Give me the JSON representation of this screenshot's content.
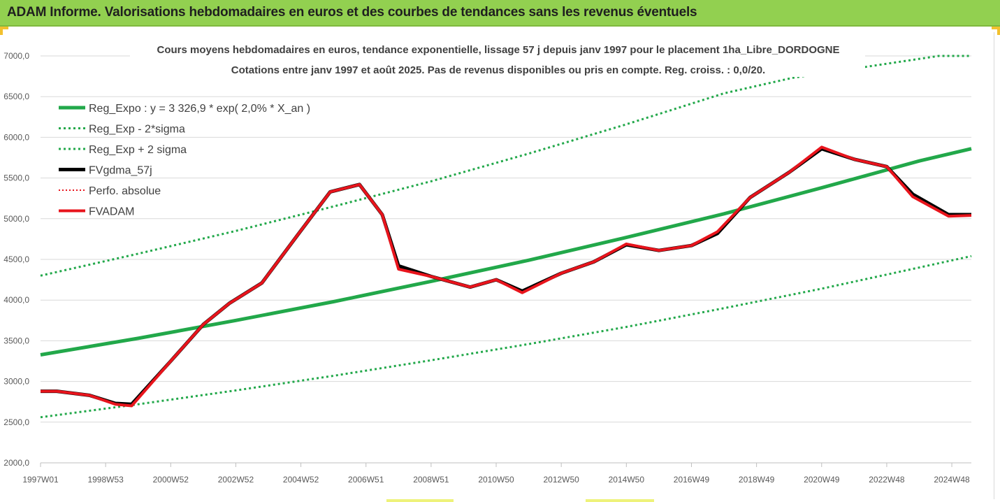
{
  "banner": {
    "title": "ADAM Informe. Valorisations hebdomadaires en euros et des courbes de tendances sans les revenus éventuels"
  },
  "chart_data": {
    "type": "line",
    "title": "Cours moyens hebdomadaires en euros, tendance exponentielle, lissage 57 j depuis janv 1997 pour le placement 1ha_Libre_DORDOGNE",
    "subtitle": "Cotations entre janv 1997 et août 2025.  Pas de revenus disponibles ou pris en compte. Reg. croiss. : 0,0/20.",
    "xlabel": "",
    "ylabel": "",
    "ylim": [
      2000,
      7000
    ],
    "xlim": [
      1997.0,
      2025.6
    ],
    "grid": true,
    "legend_position": "top-left",
    "x_ticks": [
      {
        "label": "1997W01",
        "x": 1997.0
      },
      {
        "label": "1998W53",
        "x": 1999.0
      },
      {
        "label": "2000W52",
        "x": 2001.0
      },
      {
        "label": "2002W52",
        "x": 2003.0
      },
      {
        "label": "2004W52",
        "x": 2005.0
      },
      {
        "label": "2006W51",
        "x": 2007.0
      },
      {
        "label": "2008W51",
        "x": 2009.0
      },
      {
        "label": "2010W50",
        "x": 2011.0
      },
      {
        "label": "2012W50",
        "x": 2013.0
      },
      {
        "label": "2014W50",
        "x": 2015.0
      },
      {
        "label": "2016W49",
        "x": 2017.0
      },
      {
        "label": "2018W49",
        "x": 2019.0
      },
      {
        "label": "2020W49",
        "x": 2021.0
      },
      {
        "label": "2022W48",
        "x": 2023.0
      },
      {
        "label": "2024W48",
        "x": 2025.0
      }
    ],
    "y_ticks": [
      {
        "label": "2000,0",
        "value": 2000
      },
      {
        "label": "2500,0",
        "value": 2500
      },
      {
        "label": "3000,0",
        "value": 3000
      },
      {
        "label": "3500,0",
        "value": 3500
      },
      {
        "label": "4000,0",
        "value": 4000
      },
      {
        "label": "4500,0",
        "value": 4500
      },
      {
        "label": "5000,0",
        "value": 5000
      },
      {
        "label": "5500,0",
        "value": 5500
      },
      {
        "label": "6000,0",
        "value": 6000
      },
      {
        "label": "6500,0",
        "value": 6500
      },
      {
        "label": "7000,0",
        "value": 7000
      }
    ],
    "series": [
      {
        "name": "Reg_Expo : y = 3 326,9 * exp( 2,0% *  X_an )",
        "color": "#22a84a",
        "style": "solid",
        "width": 5,
        "x": [
          1997.0,
          2000.0,
          2003.0,
          2006.0,
          2009.0,
          2012.0,
          2015.0,
          2018.0,
          2021.0,
          2024.0,
          2025.6
        ],
        "values": [
          3326.9,
          3530,
          3750,
          3980,
          4230,
          4490,
          4770,
          5060,
          5380,
          5710,
          5860
        ]
      },
      {
        "name": "Reg_Exp - 2*sigma",
        "color": "#22a84a",
        "style": "dotted",
        "width": 3,
        "x": [
          1997.0,
          2000.0,
          2003.0,
          2006.0,
          2009.0,
          2012.0,
          2015.0,
          2018.0,
          2021.0,
          2024.0,
          2025.6
        ],
        "values": [
          2560,
          2720,
          2890,
          3070,
          3260,
          3460,
          3670,
          3900,
          4140,
          4400,
          4540
        ]
      },
      {
        "name": "Reg_Exp + 2 sigma",
        "color": "#22a84a",
        "style": "dotted",
        "width": 3,
        "x": [
          1997.0,
          2000.0,
          2003.0,
          2006.0,
          2009.0,
          2012.0,
          2015.0,
          2018.0,
          2020.1,
          2024.6,
          2025.6
        ],
        "values": [
          4300,
          4570,
          4850,
          5150,
          5460,
          5800,
          6160,
          6540,
          6730,
          7000,
          7000
        ]
      },
      {
        "name": "FVgdma_57j",
        "color": "#000000",
        "style": "solid",
        "width": 5,
        "x": [
          1997.0,
          1997.5,
          1998.5,
          1999.3,
          1999.8,
          2001.0,
          2002.0,
          2002.8,
          2003.8,
          2004.9,
          2005.9,
          2006.8,
          2007.5,
          2008.0,
          2009.0,
          2010.2,
          2011.0,
          2011.8,
          2013.0,
          2014.0,
          2015.0,
          2016.0,
          2017.0,
          2017.8,
          2018.8,
          2020.0,
          2021.0,
          2022.0,
          2023.0,
          2023.8,
          2024.9,
          2025.6
        ],
        "values": [
          2880,
          2880,
          2830,
          2730,
          2720,
          3250,
          3700,
          3960,
          4210,
          4800,
          5330,
          5420,
          5050,
          4420,
          4290,
          4160,
          4250,
          4110,
          4330,
          4470,
          4680,
          4610,
          4670,
          4820,
          5260,
          5570,
          5860,
          5730,
          5640,
          5300,
          5050,
          5050
        ]
      },
      {
        "name": "Perfo. absolue",
        "color": "#e8141c",
        "style": "dotted",
        "width": 2,
        "x": [],
        "values": []
      },
      {
        "name": "FVADAM",
        "color": "#e8141c",
        "style": "solid",
        "width": 4,
        "x": [
          1997.0,
          1997.5,
          1998.5,
          1999.3,
          1999.8,
          2001.0,
          2002.0,
          2002.8,
          2003.8,
          2004.9,
          2005.9,
          2006.8,
          2007.5,
          2008.0,
          2009.0,
          2010.2,
          2011.0,
          2011.8,
          2013.0,
          2014.0,
          2015.0,
          2016.0,
          2017.0,
          2017.8,
          2018.8,
          2020.0,
          2021.0,
          2022.0,
          2023.0,
          2023.8,
          2024.9,
          2025.6
        ],
        "values": [
          2880,
          2880,
          2830,
          2720,
          2700,
          3250,
          3700,
          3960,
          4210,
          4800,
          5330,
          5420,
          5050,
          4380,
          4290,
          4160,
          4250,
          4090,
          4330,
          4470,
          4690,
          4610,
          4670,
          4840,
          5260,
          5570,
          5880,
          5730,
          5640,
          5270,
          5030,
          5040
        ]
      }
    ]
  }
}
